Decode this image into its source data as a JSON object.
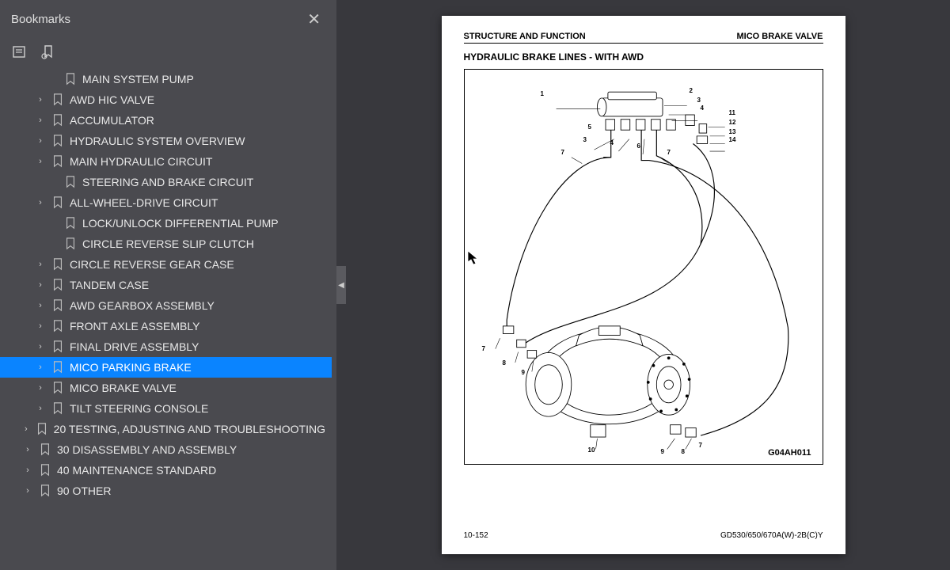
{
  "sidebar": {
    "title": "Bookmarks",
    "items": [
      {
        "label": "MAIN SYSTEM PUMP",
        "indent": 2,
        "expandable": false
      },
      {
        "label": "AWD HIC VALVE",
        "indent": 1,
        "expandable": true
      },
      {
        "label": "ACCUMULATOR",
        "indent": 1,
        "expandable": true
      },
      {
        "label": "HYDRAULIC SYSTEM OVERVIEW",
        "indent": 1,
        "expandable": true
      },
      {
        "label": "MAIN HYDRAULIC CIRCUIT",
        "indent": 1,
        "expandable": true
      },
      {
        "label": "STEERING AND BRAKE CIRCUIT",
        "indent": 2,
        "expandable": false
      },
      {
        "label": "ALL-WHEEL-DRIVE CIRCUIT",
        "indent": 1,
        "expandable": true
      },
      {
        "label": "LOCK/UNLOCK DIFFERENTIAL PUMP",
        "indent": 2,
        "expandable": false
      },
      {
        "label": "CIRCLE REVERSE SLIP CLUTCH",
        "indent": 2,
        "expandable": false
      },
      {
        "label": "CIRCLE REVERSE GEAR CASE",
        "indent": 1,
        "expandable": true
      },
      {
        "label": "TANDEM CASE",
        "indent": 1,
        "expandable": true
      },
      {
        "label": "AWD GEARBOX ASSEMBLY",
        "indent": 1,
        "expandable": true
      },
      {
        "label": "FRONT AXLE ASSEMBLY",
        "indent": 1,
        "expandable": true
      },
      {
        "label": "FINAL DRIVE ASSEMBLY",
        "indent": 1,
        "expandable": true
      },
      {
        "label": "MICO PARKING BRAKE",
        "indent": 1,
        "expandable": true,
        "selected": true
      },
      {
        "label": "MICO BRAKE VALVE",
        "indent": 1,
        "expandable": true
      },
      {
        "label": "TILT STEERING CONSOLE",
        "indent": 1,
        "expandable": true
      },
      {
        "label": "20 TESTING, ADJUSTING AND TROUBLESHOOTING",
        "indent": 0,
        "expandable": true
      },
      {
        "label": "30 DISASSEMBLY AND ASSEMBLY",
        "indent": 0,
        "expandable": true
      },
      {
        "label": "40 MAINTENANCE STANDARD",
        "indent": 0,
        "expandable": true
      },
      {
        "label": "90 OTHER",
        "indent": 0,
        "expandable": true
      }
    ]
  },
  "page": {
    "header_left": "STRUCTURE AND FUNCTION",
    "header_right": "MICO BRAKE VALVE",
    "title": "HYDRAULIC BRAKE LINES - WITH AWD",
    "diagram_id": "G04AH011",
    "footer_left": "10-152",
    "footer_right": "GD530/650/670A(W)-2B(C)Y",
    "callouts": [
      "1",
      "2",
      "3",
      "4",
      "5",
      "6",
      "7",
      "8",
      "9",
      "10",
      "11",
      "12",
      "13",
      "14"
    ]
  },
  "colors": {
    "sidebar_bg": "#4a4a4f",
    "viewer_bg": "#38383d",
    "selected_bg": "#0a84ff",
    "text_light": "#e8e8e8"
  }
}
